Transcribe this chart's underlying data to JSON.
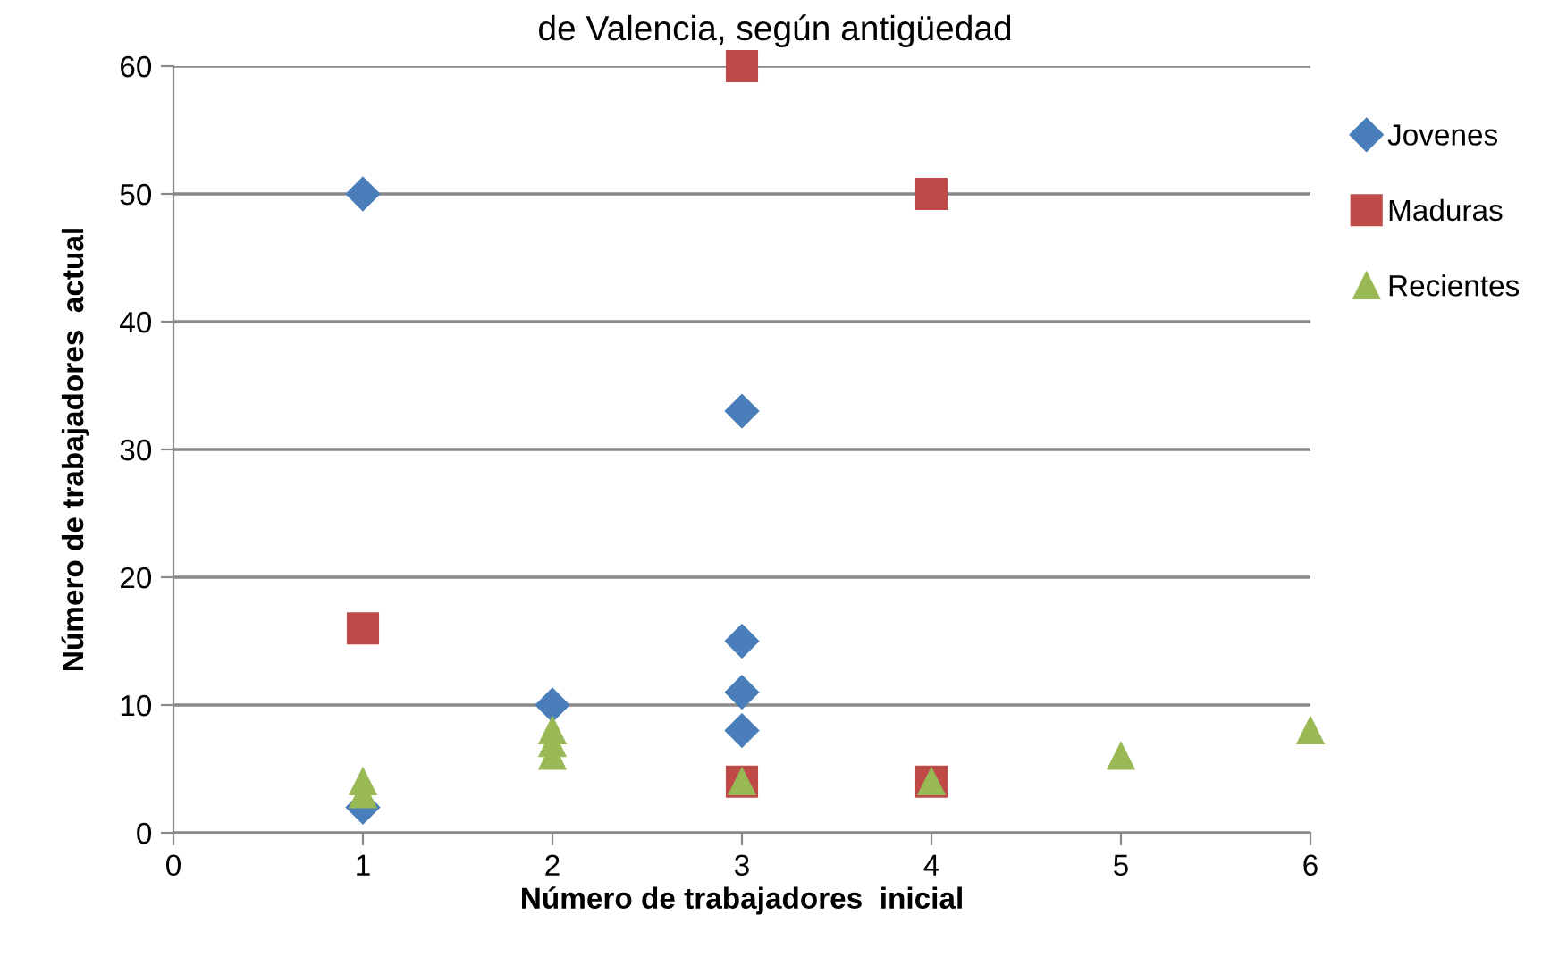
{
  "chart_data": {
    "type": "scatter",
    "title": "de Valencia, según antigüedad",
    "xlabel": "Número de trabajadores  inicial",
    "ylabel": "Número de trabajadores  actual",
    "xlim": [
      0,
      6
    ],
    "ylim": [
      0,
      60
    ],
    "xticks": [
      0,
      1,
      2,
      3,
      4,
      5,
      6
    ],
    "yticks": [
      0,
      10,
      20,
      30,
      40,
      50,
      60
    ],
    "grid": "y",
    "legend": "right",
    "series": [
      {
        "name": "Jovenes",
        "color": "#4a7ebb",
        "marker": "diamond",
        "x": [
          1,
          1,
          2,
          3,
          3,
          3,
          3
        ],
        "values": [
          50,
          2,
          10,
          33,
          15,
          11,
          8
        ]
      },
      {
        "name": "Maduras",
        "color": "#be4b48",
        "marker": "square",
        "x": [
          3,
          4,
          1,
          3,
          4
        ],
        "values": [
          60,
          50,
          16,
          4,
          4
        ]
      },
      {
        "name": "Recientes",
        "color": "#98b954",
        "marker": "triangle",
        "x": [
          1,
          1,
          2,
          2,
          2,
          3,
          4,
          5,
          6
        ],
        "values": [
          4,
          3,
          8,
          7,
          6,
          4,
          4,
          6,
          8
        ]
      }
    ]
  }
}
